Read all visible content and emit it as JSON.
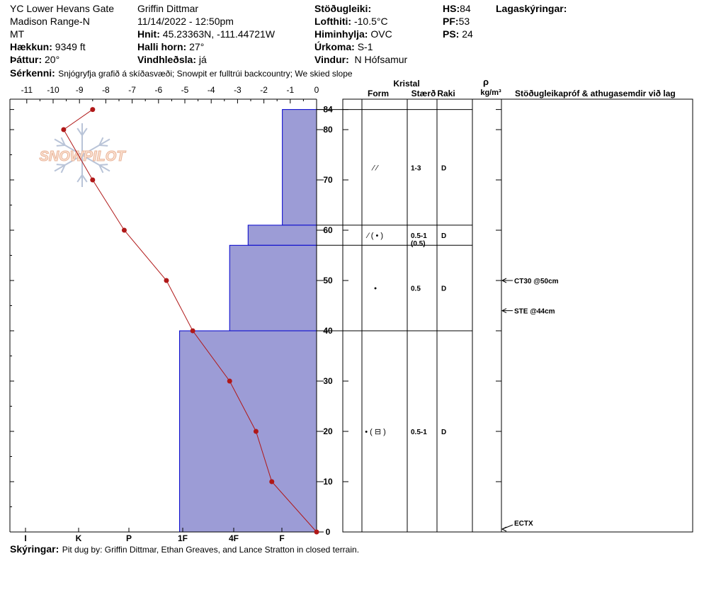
{
  "header": {
    "location": "YC Lower Hevans Gate",
    "range": "Madison Range-N",
    "state": "MT",
    "elevation_label": "Hækkun:",
    "elevation_value": "9349 ft",
    "aspect_label": "Þáttur:",
    "aspect_value": "20°",
    "observer": "Griffin Dittmar",
    "datetime": "11/14/2022 - 12:50pm",
    "coords_label": "Hnit:",
    "coords_value": "45.23363N, -111.44721W",
    "slope_label": "Halli horn:",
    "slope_value": "27°",
    "wind_loading_label": "Vindhleðsla:",
    "wind_loading_value": "já",
    "stability_label": "Stöðugleiki:",
    "air_temp_label": "Lofthiti:",
    "air_temp_value": "-10.5°C",
    "sky_label": "Himinhylja:",
    "sky_value": "OVC",
    "precip_label": "Úrkoma:",
    "precip_value": "S-1",
    "wind_label": "Vindur:",
    "wind_value": "N Hófsamur",
    "hs_label": "HS:",
    "hs_value": "84",
    "pf_label": "PF:",
    "pf_value": "53",
    "ps_label": "PS:",
    "ps_value": "24",
    "layer_notes_label": "Lagaskýringar:",
    "features_label": "Sérkenni:",
    "features_value": "Snjógryfja grafið á skíðasvæði; Snowpit er fulltrúi backcountry; We skied slope"
  },
  "footer": {
    "notes_label": "Skýringar:",
    "notes_value": "Pit dug by: Griffin Dittmar, Ethan Greaves, and Lance Stratton in closed terrain."
  },
  "watermark": "SNOWPILOT",
  "colors": {
    "hardness_fill": "#9c9cd6",
    "hardness_stroke": "#0000cc",
    "temp_line": "#b01818"
  },
  "chart_data": {
    "type": "snow_profile",
    "temperature_axis": {
      "ticks": [
        -11,
        -10,
        -9,
        -8,
        -7,
        -6,
        -5,
        -4,
        -3,
        -2,
        -1,
        0
      ],
      "range": [
        -11.3,
        0
      ]
    },
    "hardness_axis": {
      "ticks": [
        "I",
        "K",
        "P",
        "1F",
        "4F",
        "F"
      ]
    },
    "depth_axis": {
      "ticks": [
        0,
        10,
        20,
        30,
        40,
        50,
        60,
        70,
        80,
        84
      ],
      "range": [
        0,
        86
      ]
    },
    "temperature_profile": [
      {
        "depth": 84,
        "temp": -8.5
      },
      {
        "depth": 80,
        "temp": -9.6
      },
      {
        "depth": 70,
        "temp": -8.5
      },
      {
        "depth": 60,
        "temp": -7.3
      },
      {
        "depth": 50,
        "temp": -5.7
      },
      {
        "depth": 40,
        "temp": -4.7
      },
      {
        "depth": 30,
        "temp": -3.3
      },
      {
        "depth": 20,
        "temp": -2.3
      },
      {
        "depth": 10,
        "temp": -1.7
      },
      {
        "depth": 0,
        "temp": 0
      }
    ],
    "layers": [
      {
        "top": 84,
        "bottom": 61,
        "hardness_temp": -1.3,
        "form": "⁄ ⁄",
        "size": "1-3",
        "size2": "",
        "moisture": "D",
        "label_depth": 72.5
      },
      {
        "top": 61,
        "bottom": 57,
        "hardness_temp": -2.6,
        "form": "⁄ ( • )",
        "size": "0.5-1",
        "size2": "(0.5)",
        "moisture": "D",
        "label_depth": 59
      },
      {
        "top": 57,
        "bottom": 40,
        "hardness_temp": -3.3,
        "form": "•",
        "size": "0.5",
        "size2": "",
        "moisture": "D",
        "label_depth": 48.5
      },
      {
        "top": 40,
        "bottom": 0,
        "hardness_temp": -5.2,
        "form": "• ( ⊟ )",
        "size": "0.5-1",
        "size2": "",
        "moisture": "D",
        "label_depth": 20
      }
    ],
    "crystal_header": "Kristal",
    "col_form": "Form",
    "col_size": "Stærð",
    "col_moisture": "Raki",
    "col_density_symbol": "ρ",
    "col_density_unit": "kg/m³",
    "col_tests": "Stöðugleikapróf & athugasemdir við lag",
    "tests": [
      {
        "depth": 50,
        "label": "CT30 @50cm"
      },
      {
        "depth": 44,
        "label": "STE @44cm"
      },
      {
        "depth": 0,
        "label": "ECTX"
      }
    ]
  }
}
